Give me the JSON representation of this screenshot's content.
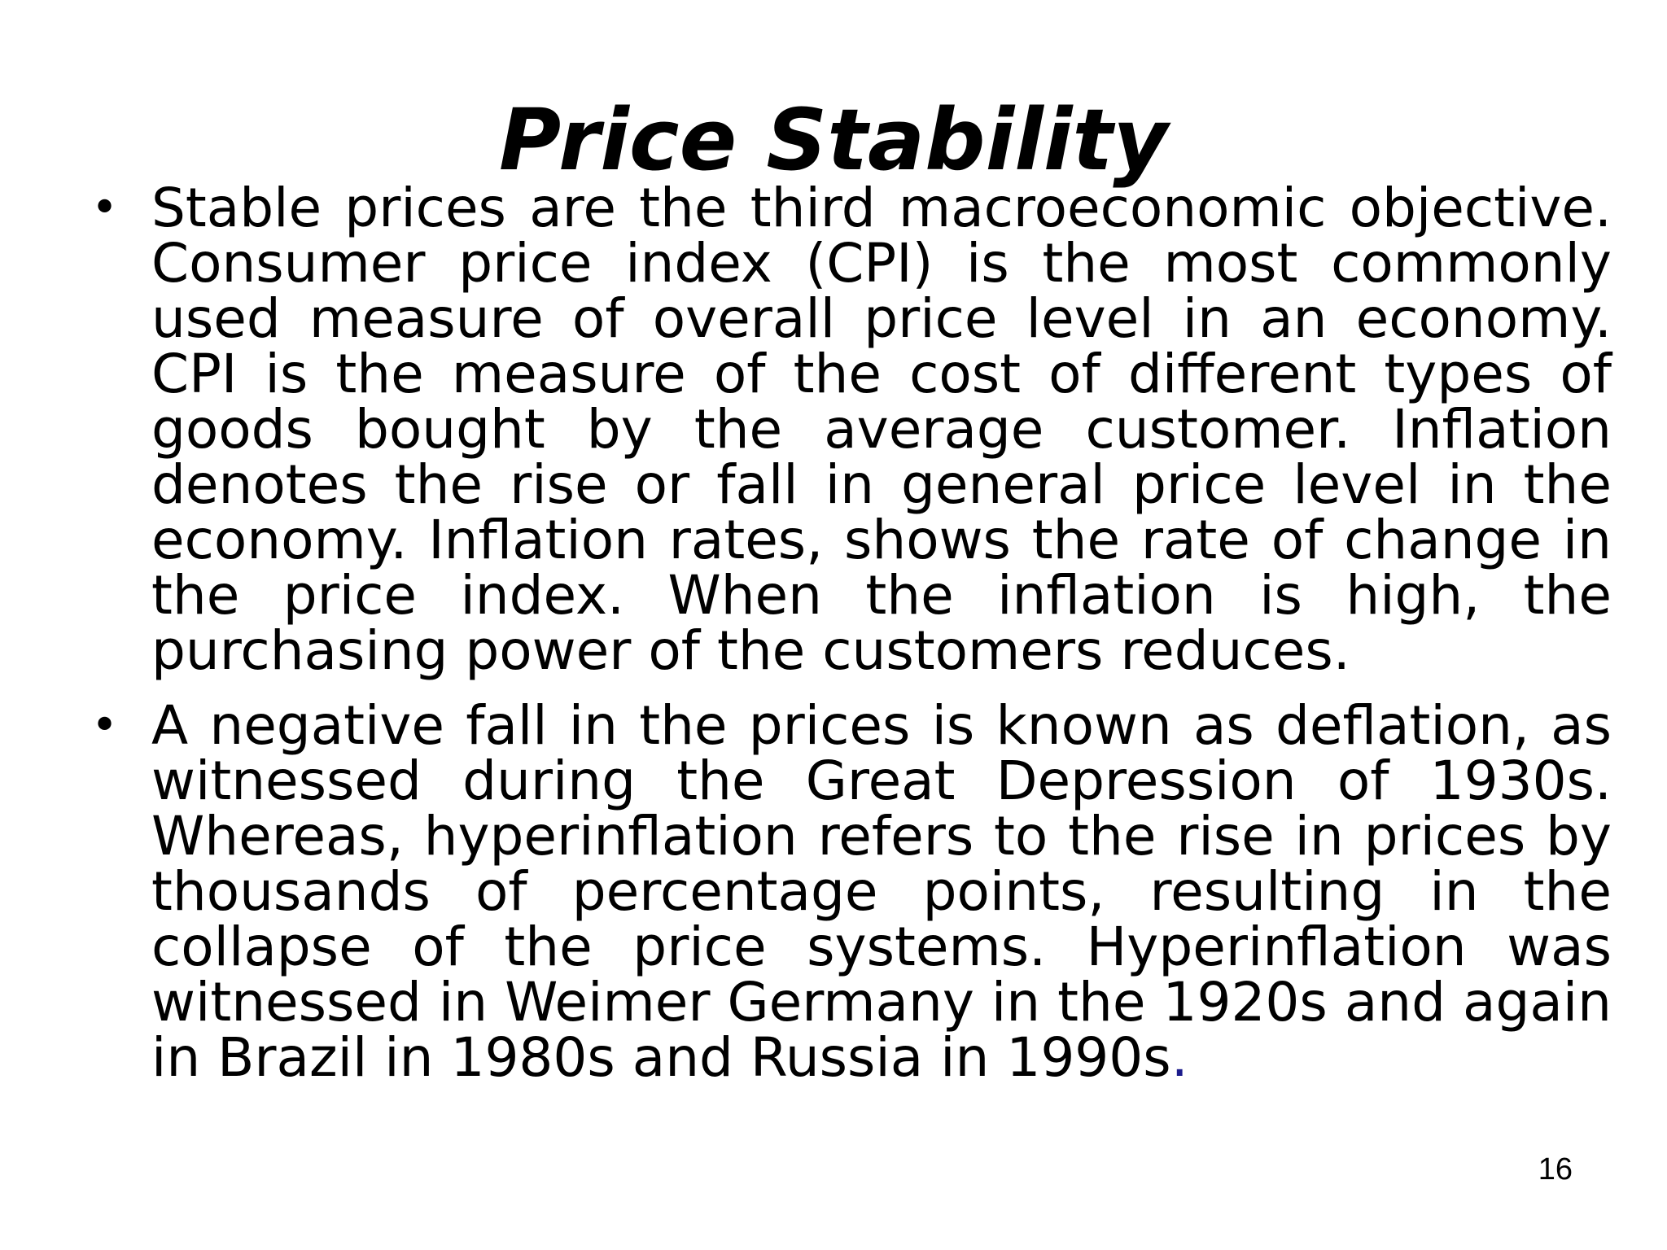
{
  "slide": {
    "title": "Price Stability",
    "bullets": [
      {
        "text": "Stable prices are the third macroeconomic objective. Consumer price index (CPI) is the most commonly used measure of overall price level in an economy. CPI is the measure of the cost of different types of goods bought by the average customer.  Inflation denotes the rise or fall in general price level in the economy.  Inflation rates, shows the rate of change in the price index.  When the inflation is high, the purchasing power of the customers reduces."
      },
      {
        "text": "A negative fall in the prices is known as deflation, as witnessed during the Great Depression of 1930s. Whereas, hyperinflation refers to the rise in prices by thousands of percentage points, resulting in the collapse of the price systems. Hyperinflation was witnessed in Weimer Germany in the 1920s and again in Brazil in 1980s and Russia in 1990s",
        "trailing_period": "."
      }
    ],
    "bullet_glyph": "•",
    "page_number": "16"
  },
  "colors": {
    "background": "#ffffff",
    "text": "#000000",
    "accent_period": "#1c1c8c"
  }
}
